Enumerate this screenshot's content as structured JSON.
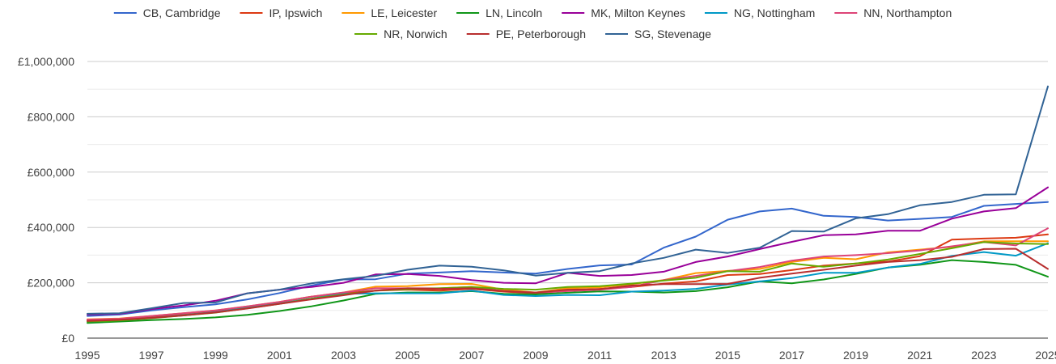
{
  "chart_data": {
    "type": "line",
    "title": "",
    "xlabel": "",
    "ylabel": "",
    "ylim": [
      0,
      1000000
    ],
    "xlim": [
      1995,
      2025
    ],
    "grid": true,
    "legend_position": "top",
    "y_ticks": [
      {
        "value": 0,
        "label": "£0"
      },
      {
        "value": 200000,
        "label": "£200,000"
      },
      {
        "value": 400000,
        "label": "£400,000"
      },
      {
        "value": 600000,
        "label": "£600,000"
      },
      {
        "value": 800000,
        "label": "£800,000"
      },
      {
        "value": 1000000,
        "label": "£1,000,000"
      }
    ],
    "x_ticks": [
      "1995",
      "1997",
      "1999",
      "2001",
      "2003",
      "2005",
      "2007",
      "2009",
      "2011",
      "2013",
      "2015",
      "2017",
      "2019",
      "2021",
      "2023",
      "2025"
    ],
    "x": [
      1995,
      1996,
      1997,
      1998,
      1999,
      2000,
      2001,
      2002,
      2003,
      2004,
      2005,
      2006,
      2007,
      2008,
      2009,
      2010,
      2011,
      2012,
      2013,
      2014,
      2015,
      2016,
      2017,
      2018,
      2019,
      2020,
      2021,
      2022,
      2023,
      2024,
      2025
    ],
    "series": [
      {
        "name": "CB, Cambridge",
        "color": "#3366cc",
        "values": [
          80000,
          85000,
          100000,
          112000,
          122000,
          140000,
          163000,
          190000,
          212000,
          213000,
          233000,
          237000,
          242000,
          237000,
          233000,
          250000,
          263000,
          266000,
          327000,
          367000,
          428000,
          458000,
          468000,
          442000,
          438000,
          425000,
          431000,
          438000,
          478000,
          485000,
          492000
        ]
      },
      {
        "name": "IP, Ipswich",
        "color": "#dc3912",
        "values": [
          65000,
          67000,
          75000,
          85000,
          95000,
          110000,
          130000,
          150000,
          162000,
          172000,
          175000,
          172000,
          178000,
          168000,
          162000,
          172000,
          178000,
          185000,
          197000,
          205000,
          228000,
          232000,
          246000,
          262000,
          270000,
          277000,
          296000,
          356000,
          360000,
          363000,
          375000
        ]
      },
      {
        "name": "LE, Leicester",
        "color": "#ff9900",
        "values": [
          68000,
          71000,
          80000,
          90000,
          100000,
          115000,
          131000,
          150000,
          165000,
          186000,
          188000,
          195000,
          196000,
          175000,
          165000,
          180000,
          184000,
          195000,
          210000,
          235000,
          243000,
          250000,
          275000,
          290000,
          285000,
          310000,
          320000,
          330000,
          350000,
          350000,
          350000
        ]
      },
      {
        "name": "LN, Lincoln",
        "color": "#109618",
        "values": [
          55000,
          60000,
          65000,
          69000,
          75000,
          84000,
          98000,
          115000,
          136000,
          160000,
          165000,
          165000,
          170000,
          160000,
          158000,
          164000,
          169000,
          168000,
          165000,
          170000,
          184000,
          205000,
          198000,
          212000,
          232000,
          255000,
          265000,
          282000,
          275000,
          265000,
          222000
        ]
      },
      {
        "name": "MK, Milton Keynes",
        "color": "#990099",
        "values": [
          85000,
          88000,
          105000,
          118000,
          135000,
          162000,
          175000,
          185000,
          200000,
          230000,
          232000,
          225000,
          210000,
          200000,
          198000,
          236000,
          225000,
          228000,
          240000,
          275000,
          295000,
          322000,
          348000,
          372000,
          375000,
          388000,
          388000,
          432000,
          458000,
          470000,
          545000
        ]
      },
      {
        "name": "NG, Nottingham",
        "color": "#0099c6",
        "values": [
          60000,
          65000,
          73000,
          83000,
          94000,
          110000,
          125000,
          143000,
          160000,
          162000,
          162000,
          162000,
          172000,
          156000,
          152000,
          156000,
          155000,
          168000,
          172000,
          178000,
          194000,
          205000,
          217000,
          236000,
          236000,
          255000,
          268000,
          297000,
          311000,
          298000,
          343000
        ]
      },
      {
        "name": "NN, Northampton",
        "color": "#dd4477",
        "values": [
          67000,
          70000,
          80000,
          90000,
          100000,
          115000,
          131000,
          150000,
          165000,
          180000,
          180000,
          180000,
          185000,
          170000,
          165000,
          170000,
          175000,
          185000,
          210000,
          225000,
          242000,
          257000,
          280000,
          295000,
          300000,
          307000,
          317000,
          332000,
          347000,
          335000,
          397000
        ]
      },
      {
        "name": "NR, Norwich",
        "color": "#66aa00",
        "values": [
          60000,
          64000,
          72000,
          82000,
          92000,
          108000,
          124000,
          142000,
          157000,
          172000,
          177000,
          180000,
          185000,
          178000,
          175000,
          185000,
          188000,
          197000,
          208000,
          218000,
          242000,
          240000,
          270000,
          258000,
          270000,
          284000,
          304000,
          325000,
          347000,
          342000,
          340000
        ]
      },
      {
        "name": "PE, Peterborough",
        "color": "#b82e2e",
        "values": [
          62000,
          66000,
          73000,
          82000,
          93000,
          107000,
          124000,
          140000,
          155000,
          172000,
          180000,
          178000,
          180000,
          170000,
          165000,
          175000,
          177000,
          190000,
          195000,
          195000,
          196000,
          218000,
          233000,
          247000,
          262000,
          275000,
          282000,
          294000,
          322000,
          323000,
          250000
        ]
      },
      {
        "name": "SG, Stevenage",
        "color": "#316395",
        "values": [
          88000,
          90000,
          108000,
          127000,
          129000,
          162000,
          175000,
          198000,
          213000,
          225000,
          247000,
          262000,
          258000,
          245000,
          226000,
          236000,
          242000,
          270000,
          290000,
          320000,
          308000,
          327000,
          387000,
          385000,
          433000,
          448000,
          480000,
          492000,
          518000,
          520000,
          910000
        ]
      }
    ]
  }
}
